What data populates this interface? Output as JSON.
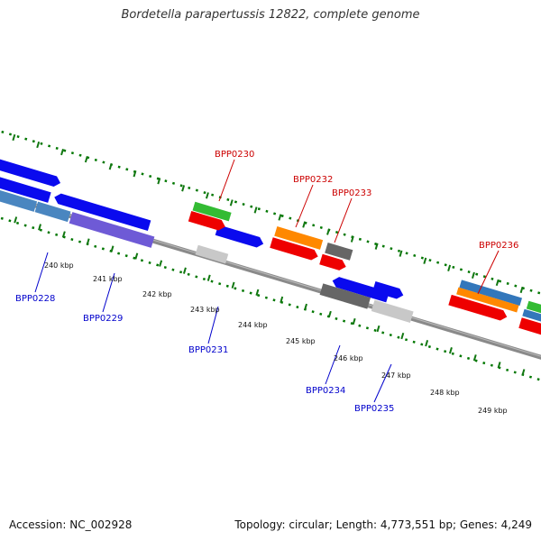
{
  "title": "Bordetella parapertussis 12822, complete genome",
  "footer": {
    "accession": "Accession: NC_002928",
    "stats": "Topology: circular; Length: 4,773,551 bp; Genes: 4,249"
  },
  "colors": {
    "forward_label": "#cc0000",
    "reverse_label": "#0000cc",
    "backbone": "#888888",
    "tick": "#007700"
  },
  "kbp_labels": [
    "240 kbp",
    "241 kbp",
    "242 kbp",
    "243 kbp",
    "244 kbp",
    "245 kbp",
    "246 kbp",
    "247 kbp",
    "248 kbp",
    "249 kbp"
  ],
  "gene_labels": [
    {
      "name": "BPP0228",
      "strand": "reverse"
    },
    {
      "name": "BPP0229",
      "strand": "reverse"
    },
    {
      "name": "BPP0230",
      "strand": "forward"
    },
    {
      "name": "BPP0231",
      "strand": "reverse"
    },
    {
      "name": "BPP0232",
      "strand": "forward"
    },
    {
      "name": "BPP0233",
      "strand": "forward"
    },
    {
      "name": "BPP0234",
      "strand": "reverse"
    },
    {
      "name": "BPP0235",
      "strand": "reverse"
    },
    {
      "name": "BPP0236",
      "strand": "forward"
    }
  ]
}
